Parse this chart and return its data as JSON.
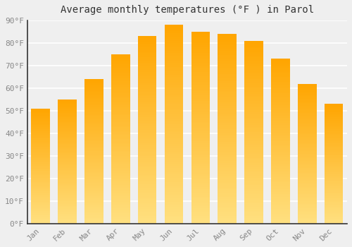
{
  "title": "Average monthly temperatures (°F ) in Parol",
  "months": [
    "Jan",
    "Feb",
    "Mar",
    "Apr",
    "May",
    "Jun",
    "Jul",
    "Aug",
    "Sep",
    "Oct",
    "Nov",
    "Dec"
  ],
  "values": [
    51,
    55,
    64,
    75,
    83,
    88,
    85,
    84,
    81,
    73,
    62,
    53
  ],
  "bar_color_top": "#FFA500",
  "bar_color_bottom": "#FFE080",
  "ylim": [
    0,
    90
  ],
  "yticks": [
    0,
    10,
    20,
    30,
    40,
    50,
    60,
    70,
    80,
    90
  ],
  "ytick_labels": [
    "0°F",
    "10°F",
    "20°F",
    "30°F",
    "40°F",
    "50°F",
    "60°F",
    "70°F",
    "80°F",
    "90°F"
  ],
  "background_color": "#EFEFEF",
  "grid_color": "#FFFFFF",
  "title_fontsize": 10,
  "tick_fontsize": 8,
  "tick_color": "#888888",
  "left_spine_color": "#333333",
  "bottom_spine_color": "#333333"
}
